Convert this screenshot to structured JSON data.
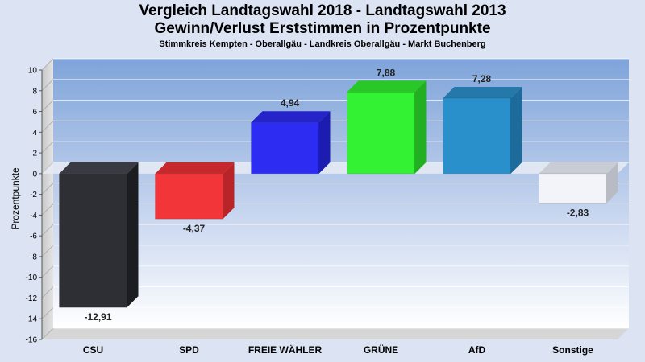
{
  "chart_data": {
    "type": "bar",
    "title": "Vergleich Landtagswahl 2018 - Landtagswahl 2013",
    "title2": "Gewinn/Verlust Erststimmen in Prozentpunkte",
    "subtitle": "Stimmkreis Kempten - Oberallgäu - Landkreis Oberallgäu - Markt Buchenberg",
    "ylabel": "Prozentpunkte",
    "xlabel": "",
    "ylim": [
      -16,
      10
    ],
    "yticks": [
      10,
      8,
      6,
      4,
      2,
      0,
      -2,
      -4,
      -6,
      -8,
      -10,
      -12,
      -14,
      -16
    ],
    "grid": true,
    "categories": [
      "CSU",
      "SPD",
      "FREIE WÄHLER",
      "GRÜNE",
      "AfD",
      "Sonstige"
    ],
    "values": [
      -12.91,
      -4.37,
      4.94,
      7.88,
      7.28,
      -2.83
    ],
    "value_labels": [
      "-12,91",
      "-4,37",
      "4,94",
      "7,88",
      "7,28",
      "-2,83"
    ],
    "colors": [
      "#2e2f35",
      "#f23538",
      "#2c2cf2",
      "#33f233",
      "#2a90cc",
      "#f2f4fa"
    ],
    "side_colors": [
      "#1c1d21",
      "#b82427",
      "#1c1cb0",
      "#22b022",
      "#1d6b9a",
      "#b8bbc4"
    ],
    "top_colors": [
      "#3a3b42",
      "#c6282b",
      "#2424c8",
      "#29c829",
      "#2579aa",
      "#c9ccd5"
    ]
  }
}
